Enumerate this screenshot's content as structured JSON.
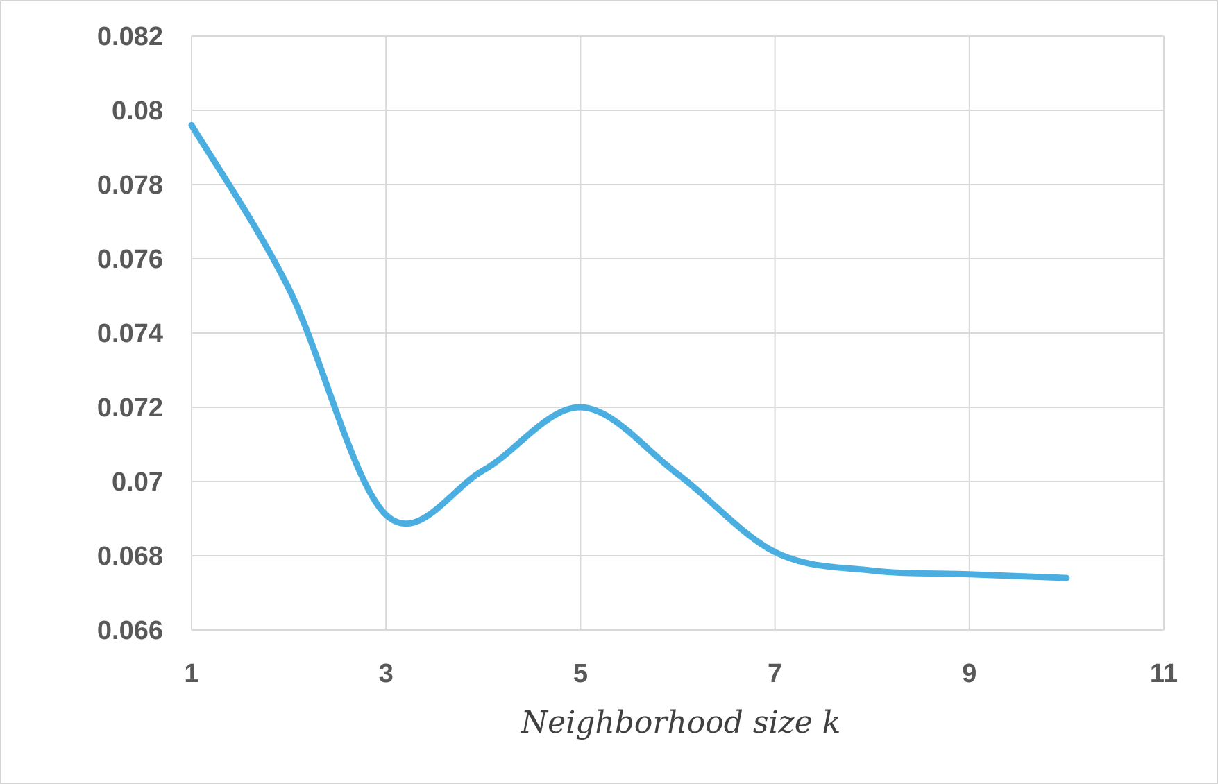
{
  "chart_data": {
    "type": "line",
    "title": "",
    "xlabel": "Neighborhood size k",
    "ylabel": "",
    "x_ticks": [
      "1",
      "3",
      "5",
      "7",
      "9",
      "11"
    ],
    "y_ticks": [
      "0.066",
      "0.068",
      "0.07",
      "0.072",
      "0.074",
      "0.076",
      "0.078",
      "0.08",
      "0.082"
    ],
    "xlim": [
      1,
      11
    ],
    "ylim": [
      0.066,
      0.082
    ],
    "grid": true,
    "legend": "none",
    "smooth": true,
    "series": [
      {
        "color": "#4aaee0",
        "x": [
          1,
          2,
          3,
          4,
          5,
          6,
          7,
          8,
          9,
          10
        ],
        "y": [
          0.0796,
          0.0752,
          0.0691,
          0.0703,
          0.072,
          0.0702,
          0.0681,
          0.0676,
          0.0675,
          0.0674
        ]
      }
    ]
  }
}
